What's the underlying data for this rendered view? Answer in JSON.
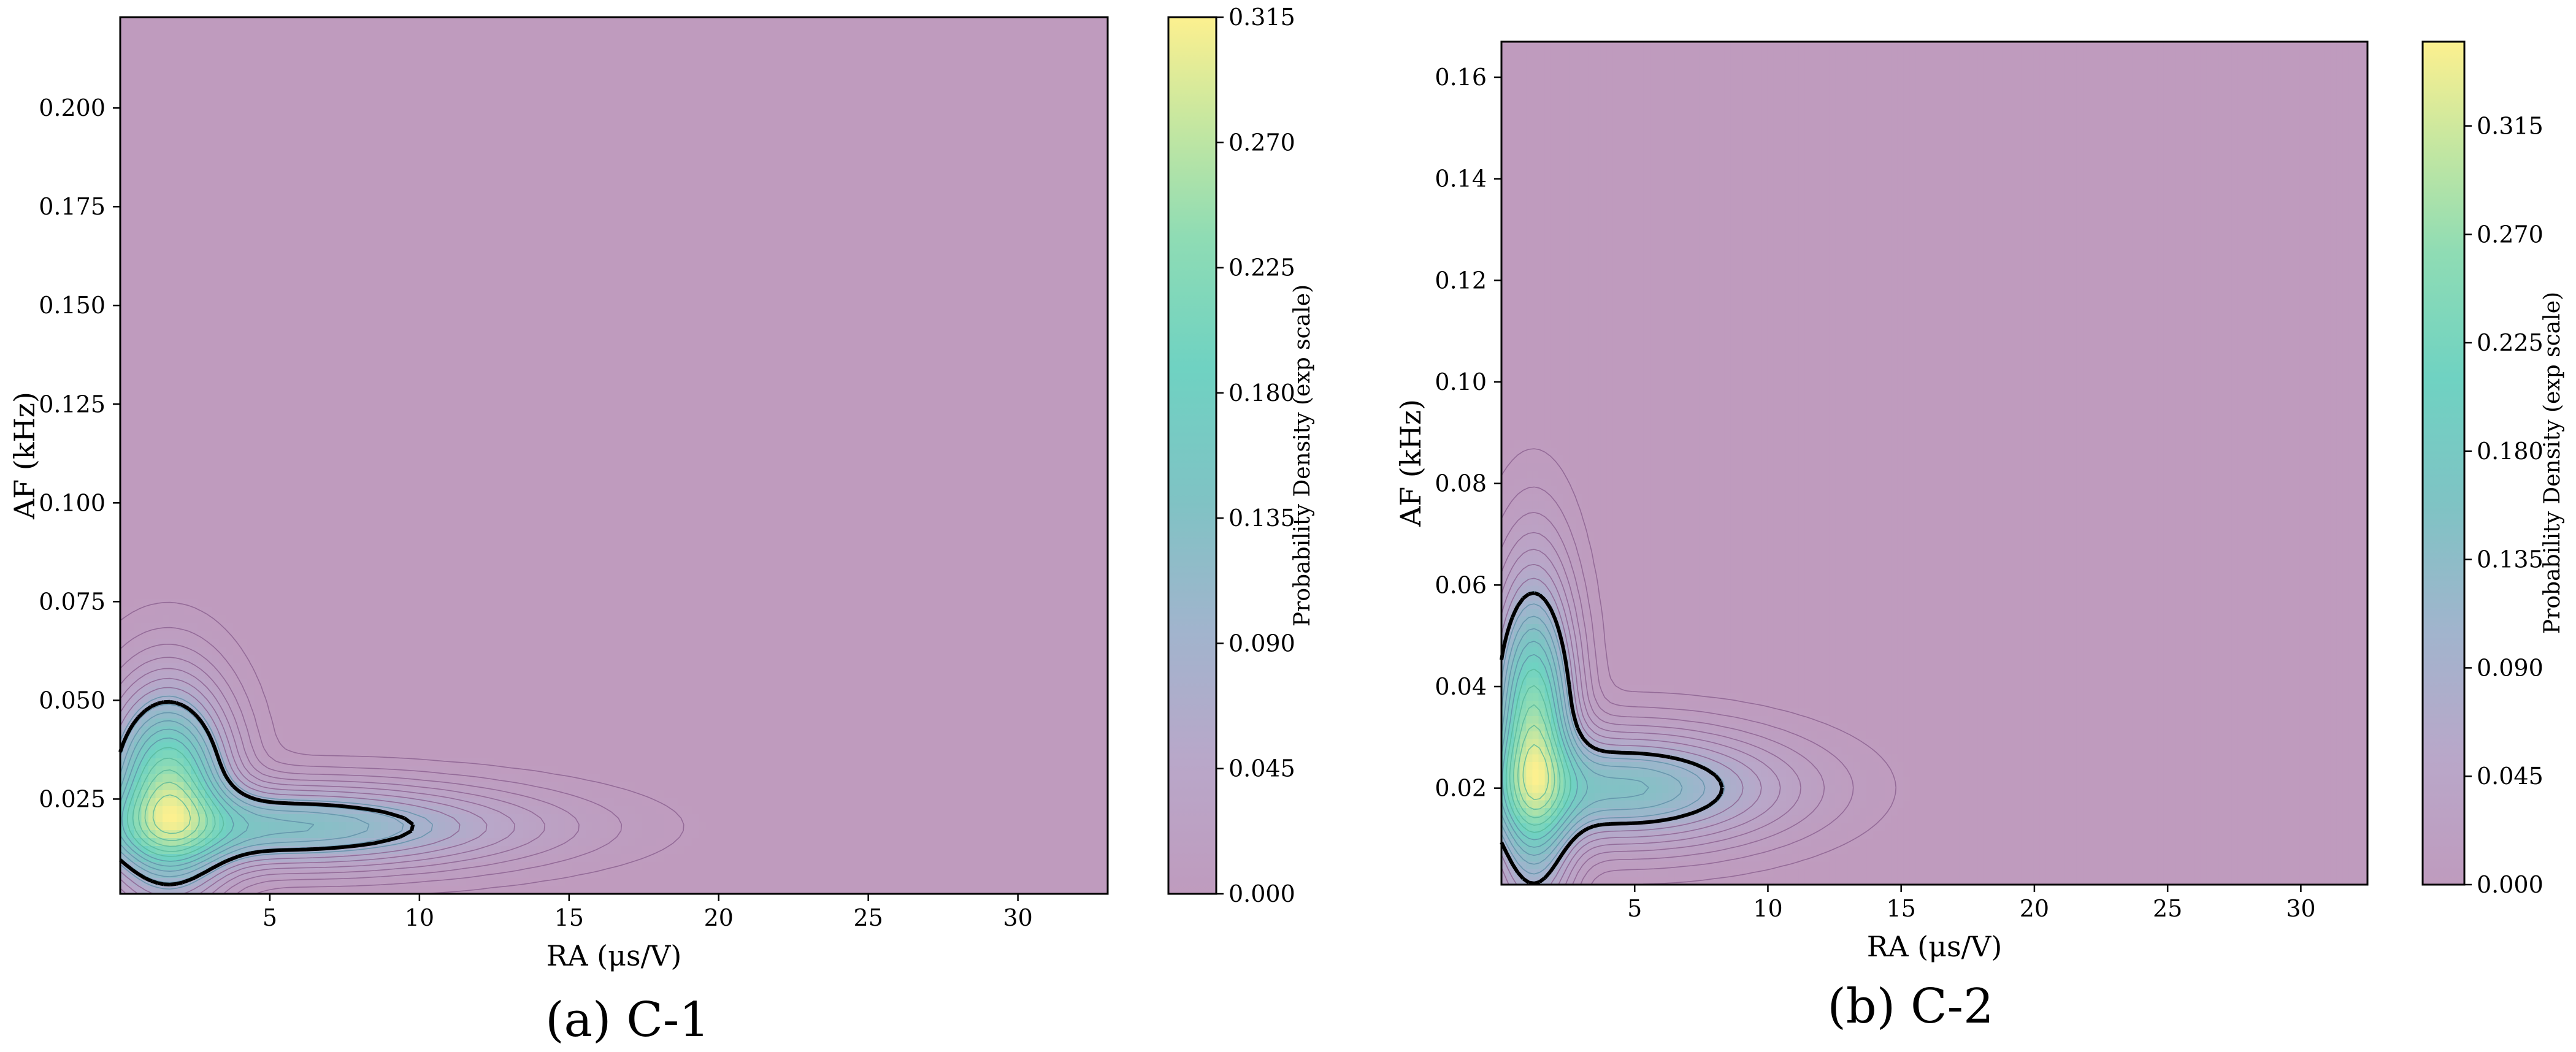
{
  "chart_data": [
    {
      "type": "contour",
      "panel_label": "(a) C-1",
      "xlabel": "RA (μs/V)",
      "ylabel": "AF (kHz)",
      "xlim": [
        0,
        33
      ],
      "ylim": [
        0.001,
        0.223
      ],
      "x_ticks": [
        5,
        10,
        15,
        20,
        25,
        30
      ],
      "y_ticks": [
        0.025,
        0.05,
        0.075,
        0.1,
        0.125,
        0.15,
        0.175,
        0.2
      ],
      "y_tick_labels": [
        "0.025",
        "0.050",
        "0.075",
        "0.100",
        "0.125",
        "0.150",
        "0.175",
        "0.200"
      ],
      "colorbar": {
        "label": "Probability Density (exp scale)",
        "min": 0.0,
        "max": 0.315,
        "ticks": [
          "0.000",
          "0.045",
          "0.090",
          "0.135",
          "0.180",
          "0.225",
          "0.270",
          "0.315"
        ]
      },
      "density_peak": {
        "x": 1.6,
        "y": 0.025,
        "value": 0.315
      },
      "components": [
        {
          "x": 1.6,
          "y": 0.027,
          "sx": 1.25,
          "sy": 0.016,
          "w": 1.0
        },
        {
          "x": 5.5,
          "y": 0.018,
          "sx": 4.8,
          "sy": 0.0065,
          "w": 0.55
        }
      ],
      "dashed_contour_level": 0.09,
      "grid": false
    },
    {
      "type": "contour",
      "panel_label": "(b) C-2",
      "xlabel": "RA (μs/V)",
      "ylabel": "AF (kHz)",
      "xlim": [
        0,
        32.5
      ],
      "ylim": [
        0.001,
        0.167
      ],
      "x_ticks": [
        5,
        10,
        15,
        20,
        25,
        30
      ],
      "y_ticks": [
        0.02,
        0.04,
        0.06,
        0.08,
        0.1,
        0.12,
        0.14,
        0.16
      ],
      "y_tick_labels": [
        "0.02",
        "0.04",
        "0.06",
        "0.08",
        "0.10",
        "0.12",
        "0.14",
        "0.16"
      ],
      "colorbar": {
        "label": "Probability Density (exp scale)",
        "min": 0.0,
        "max": 0.35,
        "ticks": [
          "0.000",
          "0.045",
          "0.090",
          "0.135",
          "0.180",
          "0.225",
          "0.270",
          "0.315"
        ]
      },
      "density_peak": {
        "x": 1.2,
        "y": 0.029,
        "value": 0.35
      },
      "components": [
        {
          "x": 1.2,
          "y": 0.03,
          "sx": 0.95,
          "sy": 0.019,
          "w": 1.0
        },
        {
          "x": 4.5,
          "y": 0.02,
          "sx": 3.7,
          "sy": 0.0068,
          "w": 0.55
        }
      ],
      "dashed_contour_level": 0.09,
      "grid": false
    }
  ],
  "colormap": [
    "#440154",
    "#3b528b",
    "#21918c",
    "#5ec962",
    "#fde725"
  ],
  "background_tint": "#bf9bbe"
}
